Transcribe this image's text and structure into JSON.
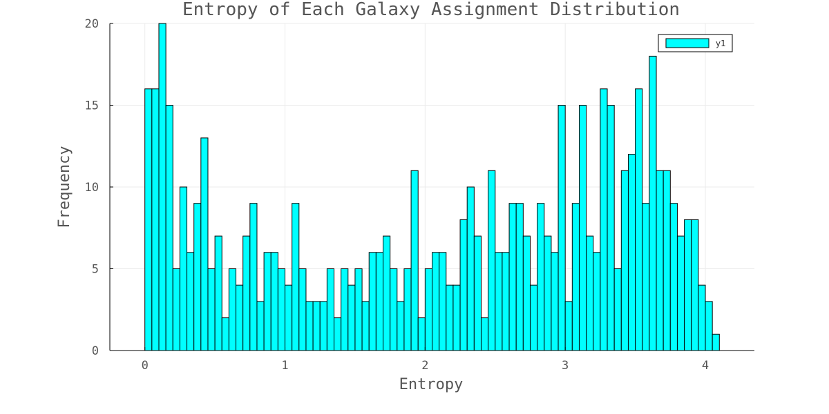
{
  "chart_data": {
    "type": "bar",
    "title": "Entropy of Each Galaxy Assignment Distribution",
    "xlabel": "Entropy",
    "ylabel": "Frequency",
    "xlim": [
      -0.25,
      4.35
    ],
    "ylim": [
      0,
      20
    ],
    "xticks": [
      0,
      1,
      2,
      3,
      4
    ],
    "xtick_labels": [
      "0",
      "1",
      "2",
      "3",
      "4"
    ],
    "yticks": [
      0,
      5,
      10,
      15,
      20
    ],
    "ytick_labels": [
      "0",
      "5",
      "10",
      "15",
      "20"
    ],
    "grid": true,
    "legend": {
      "position": "top-right",
      "entries": [
        "y1"
      ]
    },
    "bin_start": 0,
    "bin_width": 0.05,
    "series": [
      {
        "name": "y1",
        "color": "#00ffff",
        "values": [
          16,
          16,
          20,
          15,
          5,
          10,
          6,
          9,
          13,
          5,
          7,
          2,
          5,
          4,
          7,
          9,
          3,
          6,
          6,
          5,
          4,
          9,
          5,
          3,
          3,
          3,
          5,
          2,
          5,
          4,
          5,
          3,
          6,
          6,
          7,
          5,
          3,
          5,
          11,
          2,
          5,
          6,
          6,
          4,
          4,
          8,
          10,
          7,
          2,
          11,
          6,
          6,
          9,
          9,
          7,
          4,
          9,
          7,
          6,
          15,
          3,
          9,
          15,
          7,
          6,
          16,
          15,
          5,
          11,
          12,
          16,
          9,
          18,
          11,
          11,
          9,
          7,
          8,
          8,
          4,
          3,
          1
        ]
      }
    ]
  }
}
